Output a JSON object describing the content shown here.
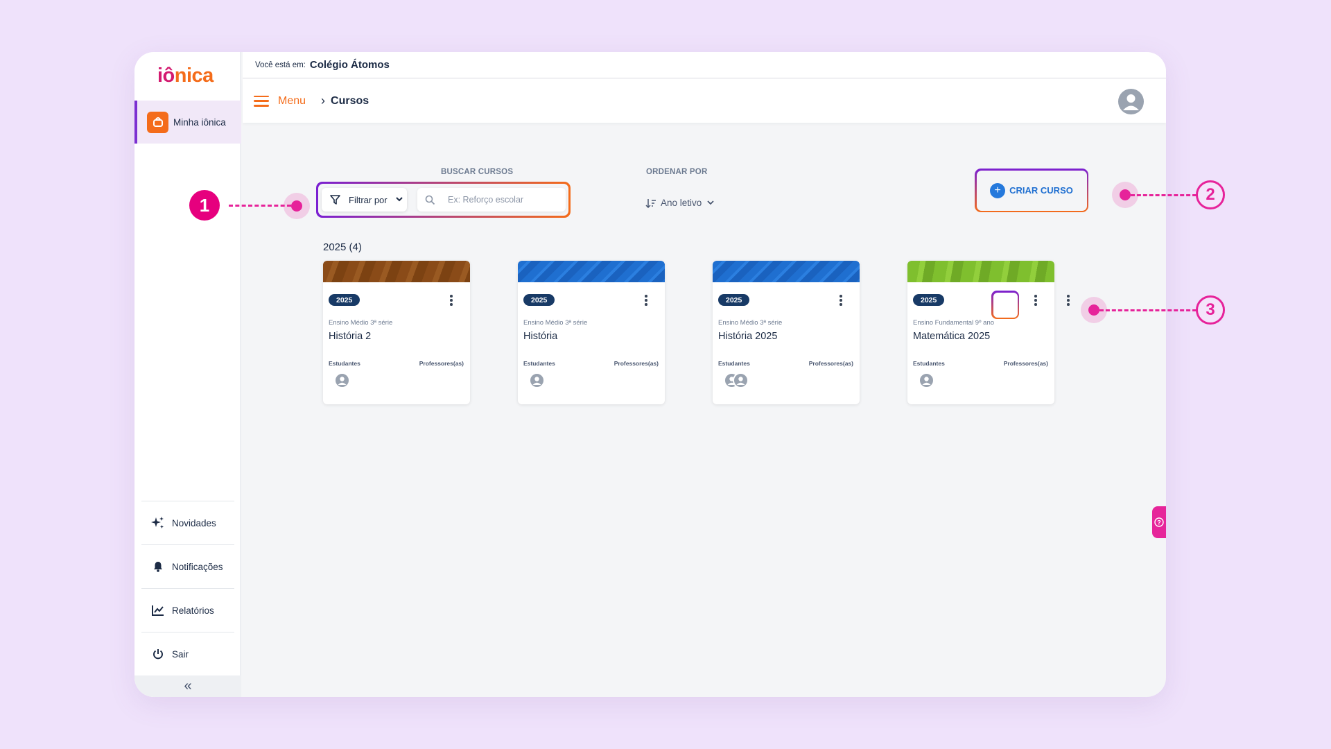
{
  "brand": {
    "logo_part1": "iô",
    "logo_part2": "nica"
  },
  "sidebar": {
    "active_item": "Minha iônica",
    "bottom_items": [
      {
        "label": "Novidades",
        "icon": "sparkles-icon"
      },
      {
        "label": "Notificações",
        "icon": "bell-icon"
      },
      {
        "label": "Relatórios",
        "icon": "chart-icon"
      },
      {
        "label": "Sair",
        "icon": "power-icon"
      }
    ],
    "collapse_glyph": "«"
  },
  "topbar": {
    "location_label": "Você está em:",
    "school": "Colégio Átomos"
  },
  "navbar": {
    "menu_label": "Menu",
    "breadcrumb": "Cursos"
  },
  "search": {
    "section_label": "BUSCAR CURSOS",
    "filter_label": "Filtrar por",
    "placeholder": "Ex: Reforço escolar"
  },
  "sort": {
    "section_label": "ORDENAR POR",
    "value": "Ano letivo"
  },
  "create_button": {
    "label": "CRIAR CURSO"
  },
  "group_heading": "2025 (4)",
  "courses": [
    {
      "year": "2025",
      "grade": "Ensino Médio 3ª série",
      "title": "História 2",
      "students_label": "Estudantes",
      "teachers_label": "Professores(as)"
    },
    {
      "year": "2025",
      "grade": "Ensino Médio 3ª série",
      "title": "História",
      "students_label": "Estudantes",
      "teachers_label": "Professores(as)"
    },
    {
      "year": "2025",
      "grade": "Ensino Médio 3ª série",
      "title": "História 2025",
      "students_label": "Estudantes",
      "teachers_label": "Professores(as)"
    },
    {
      "year": "2025",
      "grade": "Ensino Fundamental 9º ano",
      "title": "Matemática 2025",
      "students_label": "Estudantes",
      "teachers_label": "Professores(as)"
    }
  ],
  "callouts": {
    "one": "1",
    "two": "2",
    "three": "3"
  },
  "colors": {
    "brand_orange": "#f46c1a",
    "brand_purple": "#7a1fd2",
    "callout_pink": "#e6239a",
    "badge_navy": "#183a66",
    "primary_blue": "#1f6fd1"
  }
}
